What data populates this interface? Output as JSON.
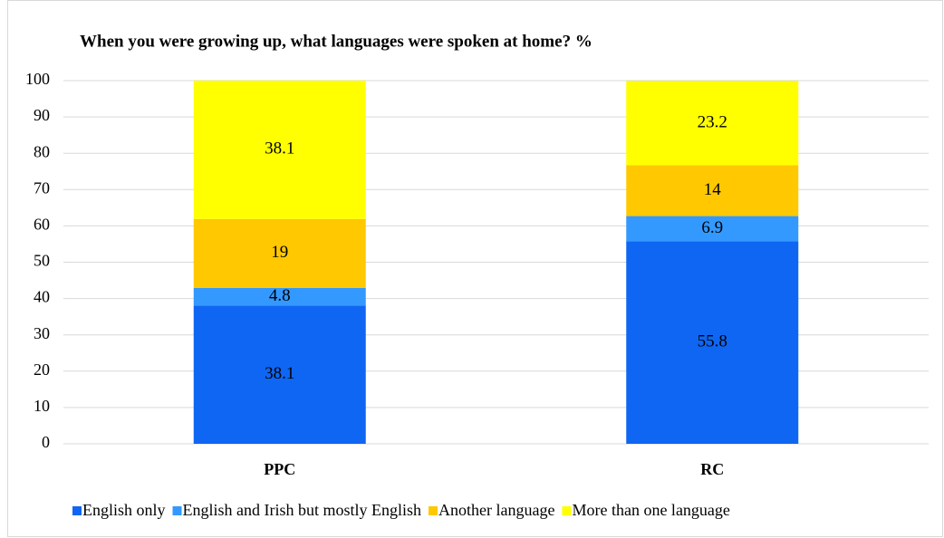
{
  "chart_data": {
    "type": "stacked_bar",
    "title": "When you were growing up, what languages were spoken at home? %",
    "categories": [
      "PPC",
      "RC"
    ],
    "series": [
      {
        "name": "English only",
        "color": "#0f66f2",
        "values": [
          38.1,
          55.8
        ]
      },
      {
        "name": "English and Irish but mostly English",
        "color": "#3399ff",
        "values": [
          4.8,
          6.9
        ]
      },
      {
        "name": "Another language",
        "color": "#ffc800",
        "values": [
          19,
          14
        ]
      },
      {
        "name": "More than one language",
        "color": "#ffff00",
        "values": [
          38.1,
          23.2
        ]
      }
    ],
    "ylim": [
      0,
      100
    ],
    "yticks": [
      0,
      10,
      20,
      30,
      40,
      50,
      60,
      70,
      80,
      90,
      100
    ],
    "grid": true,
    "legend": "bottom"
  }
}
